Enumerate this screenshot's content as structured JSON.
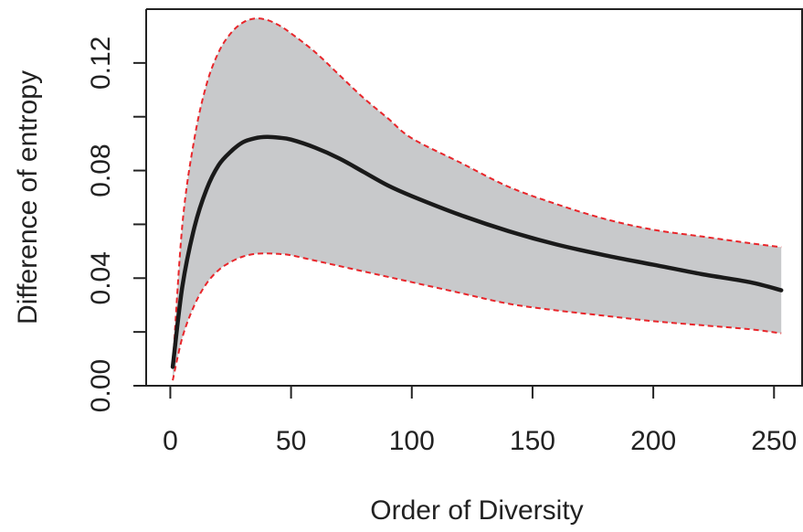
{
  "chart_data": {
    "type": "area",
    "title": "",
    "xlabel": "Order of Diversity",
    "ylabel": "Difference of entropy",
    "xlim": [
      -10,
      262
    ],
    "ylim": [
      0,
      0.14
    ],
    "x_ticks": [
      0,
      50,
      100,
      150,
      200,
      250
    ],
    "x_tick_labels": [
      "0",
      "50",
      "100",
      "150",
      "200",
      "250"
    ],
    "y_ticks": [
      0,
      0.02,
      0.04,
      0.06,
      0.08,
      0.1,
      0.12
    ],
    "y_tick_labels": [
      "0.00",
      "",
      "0.04",
      "",
      "0.08",
      "",
      "0.12"
    ],
    "grid": false,
    "legend": "none",
    "reference_line": {
      "y": 0,
      "color": "#4a6fa5",
      "style": "dashed"
    },
    "band_fill_color": "#c8c9cb",
    "series": [
      {
        "role": "estimate",
        "color": "#1a1a1a",
        "style": "solid",
        "x": [
          1,
          5,
          10,
          15,
          20,
          25,
          30,
          35,
          40,
          45,
          50,
          60,
          70,
          80,
          90,
          100,
          120,
          140,
          160,
          180,
          200,
          220,
          240,
          253
        ],
        "y": [
          0.007,
          0.037,
          0.059,
          0.073,
          0.082,
          0.087,
          0.0905,
          0.092,
          0.0925,
          0.0922,
          0.0915,
          0.0885,
          0.0845,
          0.0795,
          0.0745,
          0.0705,
          0.0635,
          0.0575,
          0.0525,
          0.0485,
          0.045,
          0.0415,
          0.0385,
          0.0355
        ]
      },
      {
        "role": "upper-bound",
        "color": "#e8262b",
        "style": "dashed",
        "x": [
          1,
          5,
          10,
          15,
          20,
          25,
          30,
          35,
          40,
          45,
          50,
          60,
          70,
          80,
          90,
          100,
          120,
          140,
          160,
          180,
          200,
          220,
          240,
          253
        ],
        "y": [
          0.007,
          0.06,
          0.092,
          0.112,
          0.124,
          0.131,
          0.135,
          0.1365,
          0.136,
          0.134,
          0.131,
          0.124,
          0.1155,
          0.107,
          0.0995,
          0.092,
          0.083,
          0.074,
          0.0675,
          0.062,
          0.058,
          0.0555,
          0.053,
          0.0515
        ]
      },
      {
        "role": "lower-bound",
        "color": "#e8262b",
        "style": "dashed",
        "x": [
          1,
          5,
          10,
          15,
          20,
          25,
          30,
          35,
          40,
          45,
          50,
          60,
          70,
          80,
          90,
          100,
          120,
          140,
          160,
          180,
          200,
          220,
          240,
          253
        ],
        "y": [
          0.002,
          0.018,
          0.03,
          0.038,
          0.043,
          0.046,
          0.048,
          0.049,
          0.0492,
          0.049,
          0.0485,
          0.0465,
          0.0445,
          0.0425,
          0.0405,
          0.0385,
          0.0345,
          0.0305,
          0.028,
          0.026,
          0.024,
          0.0225,
          0.021,
          0.0195
        ]
      }
    ]
  }
}
